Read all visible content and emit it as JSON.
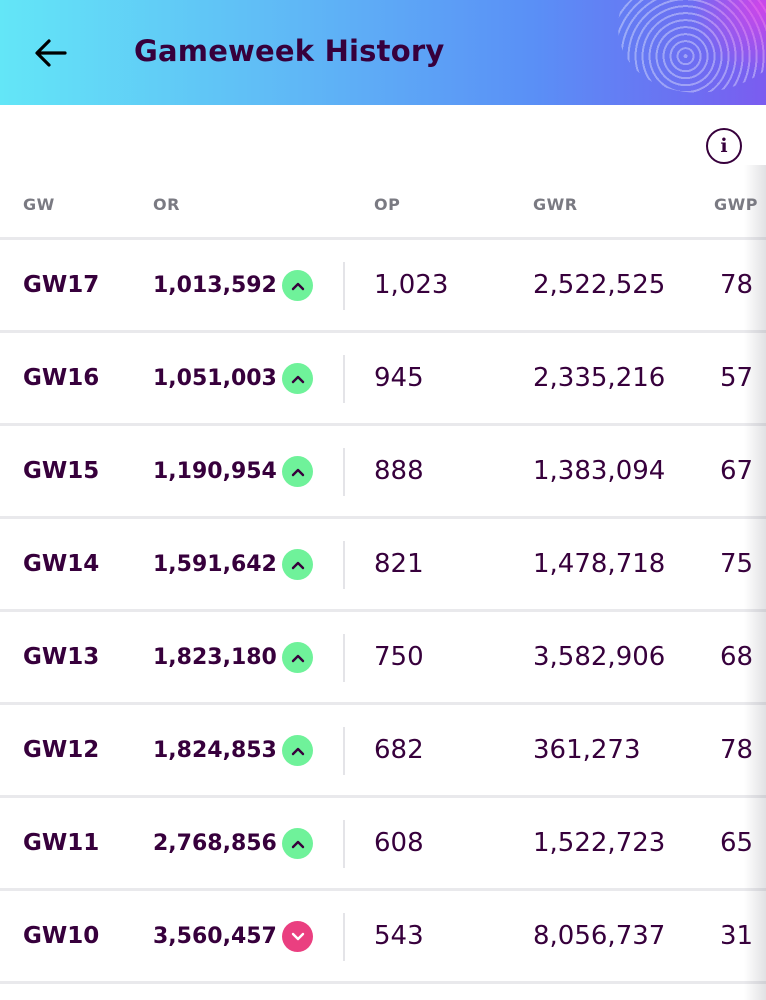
{
  "header": {
    "title": "Gameweek History",
    "back_icon": "arrow-left-icon",
    "gradient_start": "#63e6f7",
    "gradient_end": "#7b5cf0"
  },
  "info": {
    "icon": "info-icon",
    "glyph": "i"
  },
  "table": {
    "columns": [
      "GW",
      "OR",
      "OP",
      "GWR",
      "GWP"
    ],
    "rows": [
      {
        "gw": "GW17",
        "or": "1,013,592",
        "movement": "up",
        "op": "1,023",
        "gwr": "2,522,525",
        "gwp": "78"
      },
      {
        "gw": "GW16",
        "or": "1,051,003",
        "movement": "up",
        "op": "945",
        "gwr": "2,335,216",
        "gwp": "57"
      },
      {
        "gw": "GW15",
        "or": "1,190,954",
        "movement": "up",
        "op": "888",
        "gwr": "1,383,094",
        "gwp": "67"
      },
      {
        "gw": "GW14",
        "or": "1,591,642",
        "movement": "up",
        "op": "821",
        "gwr": "1,478,718",
        "gwp": "75"
      },
      {
        "gw": "GW13",
        "or": "1,823,180",
        "movement": "up",
        "op": "750",
        "gwr": "3,582,906",
        "gwp": "68"
      },
      {
        "gw": "GW12",
        "or": "1,824,853",
        "movement": "up",
        "op": "682",
        "gwr": "361,273",
        "gwp": "78"
      },
      {
        "gw": "GW11",
        "or": "2,768,856",
        "movement": "up",
        "op": "608",
        "gwr": "1,522,723",
        "gwp": "65"
      },
      {
        "gw": "GW10",
        "or": "3,560,457",
        "movement": "down",
        "op": "543",
        "gwr": "8,056,737",
        "gwp": "31"
      }
    ]
  },
  "colors": {
    "text": "#37003c",
    "header_text": "#7a7a82",
    "up": "#6ff29a",
    "down": "#ea3f80",
    "divider": "#e9e9ec"
  }
}
